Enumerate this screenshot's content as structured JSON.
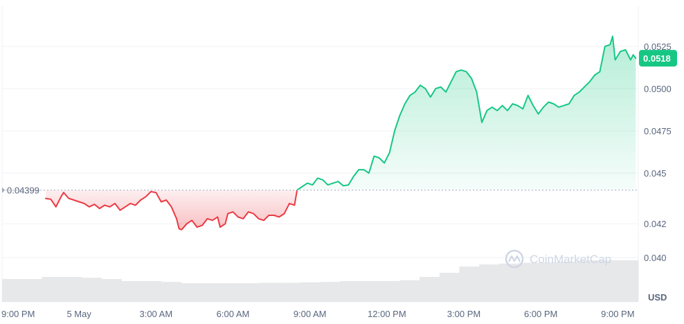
{
  "chart_data": {
    "type": "area",
    "currency_label": "USD",
    "watermark": "CoinMarketCap",
    "reference_price": 0.04399,
    "reference_label": "0.04399",
    "current_price_label": "0.0518",
    "y_ticks": [
      {
        "value": 0.04,
        "label": "0.040"
      },
      {
        "value": 0.042,
        "label": "0.042"
      },
      {
        "value": 0.045,
        "label": "0.045"
      },
      {
        "value": 0.0475,
        "label": "0.0475"
      },
      {
        "value": 0.05,
        "label": "0.0500"
      },
      {
        "value": 0.0525,
        "label": "0.0525"
      }
    ],
    "x_ticks": [
      {
        "hour": 0,
        "label": "9:00 PM"
      },
      {
        "hour": 3,
        "label": "5 May"
      },
      {
        "hour": 6,
        "label": "3:00 AM"
      },
      {
        "hour": 9,
        "label": "6:00 AM"
      },
      {
        "hour": 12,
        "label": "9:00 AM"
      },
      {
        "hour": 15,
        "label": "12:00 PM"
      },
      {
        "hour": 18,
        "label": "3:00 PM"
      },
      {
        "hour": 21,
        "label": "6:00 PM"
      },
      {
        "hour": 24,
        "label": "9:00 PM"
      }
    ],
    "x_range_hours": [
      0,
      24.8
    ],
    "y_range": [
      0.0385,
      0.0545
    ],
    "colors": {
      "up": "#16c784",
      "down": "#ea3943",
      "grid": "#eff2f5",
      "volume": "#e6e8ea"
    },
    "series": [
      {
        "points": [
          [
            1.7,
            0.0435
          ],
          [
            1.9,
            0.04345
          ],
          [
            2.1,
            0.043
          ],
          [
            2.3,
            0.0436
          ],
          [
            2.4,
            0.04385
          ],
          [
            2.6,
            0.0435
          ],
          [
            2.8,
            0.0434
          ],
          [
            3.0,
            0.0433
          ],
          [
            3.2,
            0.0432
          ],
          [
            3.4,
            0.043
          ],
          [
            3.6,
            0.04315
          ],
          [
            3.8,
            0.0429
          ],
          [
            4.0,
            0.0431
          ],
          [
            4.2,
            0.043
          ],
          [
            4.4,
            0.0432
          ],
          [
            4.6,
            0.0428
          ],
          [
            4.8,
            0.043
          ],
          [
            5.0,
            0.0432
          ],
          [
            5.2,
            0.0431
          ],
          [
            5.4,
            0.0434
          ],
          [
            5.6,
            0.0436
          ],
          [
            5.8,
            0.0439
          ],
          [
            6.0,
            0.04385
          ],
          [
            6.2,
            0.0433
          ],
          [
            6.4,
            0.0434
          ],
          [
            6.6,
            0.043
          ],
          [
            6.8,
            0.0423
          ],
          [
            6.9,
            0.0417
          ],
          [
            7.0,
            0.04165
          ],
          [
            7.2,
            0.042
          ],
          [
            7.4,
            0.0422
          ],
          [
            7.6,
            0.0418
          ],
          [
            7.8,
            0.0419
          ],
          [
            8.0,
            0.0423
          ],
          [
            8.2,
            0.0422
          ],
          [
            8.4,
            0.0424
          ],
          [
            8.5,
            0.0418
          ],
          [
            8.7,
            0.042
          ],
          [
            8.8,
            0.0426
          ],
          [
            9.0,
            0.0427
          ],
          [
            9.2,
            0.0424
          ],
          [
            9.4,
            0.0423
          ],
          [
            9.6,
            0.0427
          ],
          [
            9.8,
            0.0426
          ],
          [
            10.0,
            0.0423
          ],
          [
            10.2,
            0.0422
          ],
          [
            10.4,
            0.0425
          ],
          [
            10.6,
            0.0425
          ],
          [
            10.8,
            0.0424
          ],
          [
            11.0,
            0.0426
          ],
          [
            11.2,
            0.0432
          ],
          [
            11.4,
            0.0431
          ],
          [
            11.5,
            0.04399
          ],
          [
            11.7,
            0.0442
          ],
          [
            11.9,
            0.0444
          ],
          [
            12.1,
            0.0443
          ],
          [
            12.3,
            0.0447
          ],
          [
            12.5,
            0.0446
          ],
          [
            12.7,
            0.0443
          ],
          [
            12.9,
            0.0444
          ],
          [
            13.1,
            0.0445
          ],
          [
            13.3,
            0.04425
          ],
          [
            13.5,
            0.0443
          ],
          [
            13.7,
            0.0448
          ],
          [
            13.9,
            0.0452
          ],
          [
            14.1,
            0.0452
          ],
          [
            14.3,
            0.045
          ],
          [
            14.5,
            0.046
          ],
          [
            14.7,
            0.0459
          ],
          [
            14.9,
            0.0456
          ],
          [
            15.1,
            0.0462
          ],
          [
            15.3,
            0.0475
          ],
          [
            15.5,
            0.0484
          ],
          [
            15.7,
            0.0491
          ],
          [
            15.9,
            0.0496
          ],
          [
            16.1,
            0.0498
          ],
          [
            16.3,
            0.0502
          ],
          [
            16.5,
            0.05
          ],
          [
            16.7,
            0.0495
          ],
          [
            16.9,
            0.05
          ],
          [
            17.1,
            0.0501
          ],
          [
            17.3,
            0.0498
          ],
          [
            17.5,
            0.0504
          ],
          [
            17.7,
            0.051
          ],
          [
            17.9,
            0.0511
          ],
          [
            18.1,
            0.051
          ],
          [
            18.3,
            0.0506
          ],
          [
            18.5,
            0.0498
          ],
          [
            18.7,
            0.048
          ],
          [
            18.9,
            0.0487
          ],
          [
            19.1,
            0.0489
          ],
          [
            19.3,
            0.0487
          ],
          [
            19.5,
            0.049
          ],
          [
            19.7,
            0.0487
          ],
          [
            19.9,
            0.0491
          ],
          [
            20.1,
            0.049
          ],
          [
            20.3,
            0.0488
          ],
          [
            20.5,
            0.0496
          ],
          [
            20.7,
            0.049
          ],
          [
            20.9,
            0.0485
          ],
          [
            21.1,
            0.0489
          ],
          [
            21.3,
            0.0492
          ],
          [
            21.5,
            0.0491
          ],
          [
            21.7,
            0.0489
          ],
          [
            21.9,
            0.049
          ],
          [
            22.1,
            0.0491
          ],
          [
            22.3,
            0.0496
          ],
          [
            22.5,
            0.0498
          ],
          [
            22.7,
            0.0501
          ],
          [
            22.9,
            0.0504
          ],
          [
            23.1,
            0.0508
          ],
          [
            23.3,
            0.051
          ],
          [
            23.5,
            0.0525
          ],
          [
            23.7,
            0.0526
          ],
          [
            23.8,
            0.0531
          ],
          [
            23.9,
            0.0517
          ],
          [
            24.1,
            0.0522
          ],
          [
            24.3,
            0.0523
          ],
          [
            24.5,
            0.0517
          ],
          [
            24.6,
            0.052
          ],
          [
            24.7,
            0.0518
          ]
        ]
      }
    ],
    "volume": [
      0.55,
      0.55,
      0.6,
      0.6,
      0.58,
      0.55,
      0.5,
      0.5,
      0.48,
      0.45,
      0.45,
      0.45,
      0.45,
      0.46,
      0.46,
      0.47,
      0.48,
      0.5,
      0.5,
      0.5,
      0.52,
      0.6,
      0.7,
      0.85,
      0.9,
      0.92,
      0.94,
      0.95,
      0.97,
      1.0,
      1.0,
      1.0
    ]
  }
}
